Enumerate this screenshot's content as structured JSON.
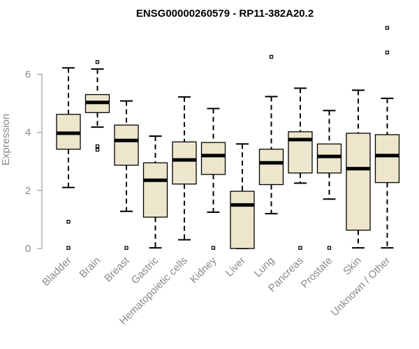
{
  "chart_data": {
    "type": "boxplot",
    "title": "ENSG00000260579 - RP11-382A20.2",
    "xlabel": "",
    "ylabel": "Expression",
    "ylim": [
      0,
      7.7
    ],
    "yticks": [
      0,
      2,
      4,
      6
    ],
    "ytick_labels": [
      "0",
      "2",
      "4",
      "6"
    ],
    "box_color": "#EDE6CC",
    "categories": [
      "Bladder",
      "Brain",
      "Breast",
      "Gastric",
      "Hematopoietic cells",
      "Kidney",
      "Liver",
      "Lung",
      "Pancreas",
      "Prostate",
      "Skin",
      "Unknown / Other"
    ],
    "boxes": [
      {
        "label": "Bladder",
        "whisker_low": 2.1,
        "q1": 3.42,
        "median": 3.97,
        "q3": 4.62,
        "whisker_high": 6.22,
        "outliers": [
          0.92,
          0.02
        ]
      },
      {
        "label": "Brain",
        "whisker_low": 4.18,
        "q1": 4.68,
        "median": 5.03,
        "q3": 5.3,
        "whisker_high": 6.18,
        "outliers": [
          6.42,
          3.52,
          3.4
        ]
      },
      {
        "label": "Breast",
        "whisker_low": 1.28,
        "q1": 2.87,
        "median": 3.72,
        "q3": 4.25,
        "whisker_high": 5.08,
        "outliers": [
          0.02
        ]
      },
      {
        "label": "Gastric",
        "whisker_low": 0.02,
        "q1": 1.08,
        "median": 2.35,
        "q3": 2.95,
        "whisker_high": 3.87,
        "outliers": []
      },
      {
        "label": "Hematopoietic cells",
        "whisker_low": 0.3,
        "q1": 2.22,
        "median": 3.05,
        "q3": 3.67,
        "whisker_high": 5.22,
        "outliers": []
      },
      {
        "label": "Kidney",
        "whisker_low": 1.25,
        "q1": 2.55,
        "median": 3.2,
        "q3": 3.65,
        "whisker_high": 4.82,
        "outliers": [
          0.02
        ]
      },
      {
        "label": "Liver",
        "whisker_low": 0.0,
        "q1": 0.0,
        "median": 1.5,
        "q3": 1.97,
        "whisker_high": 3.6,
        "outliers": []
      },
      {
        "label": "Lung",
        "whisker_low": 1.2,
        "q1": 2.2,
        "median": 2.95,
        "q3": 3.42,
        "whisker_high": 5.23,
        "outliers": [
          6.6
        ]
      },
      {
        "label": "Pancreas",
        "whisker_low": 2.25,
        "q1": 2.6,
        "median": 3.75,
        "q3": 4.02,
        "whisker_high": 5.52,
        "outliers": [
          0.02
        ]
      },
      {
        "label": "Prostate",
        "whisker_low": 1.7,
        "q1": 2.6,
        "median": 3.17,
        "q3": 3.6,
        "whisker_high": 4.75,
        "outliers": [
          0.02
        ]
      },
      {
        "label": "Skin",
        "whisker_low": 0.02,
        "q1": 0.63,
        "median": 2.75,
        "q3": 3.97,
        "whisker_high": 5.45,
        "outliers": []
      },
      {
        "label": "Unknown / Other",
        "whisker_low": 0.02,
        "q1": 2.27,
        "median": 3.2,
        "q3": 3.92,
        "whisker_high": 5.17,
        "outliers": [
          7.6,
          6.75
        ]
      }
    ]
  }
}
